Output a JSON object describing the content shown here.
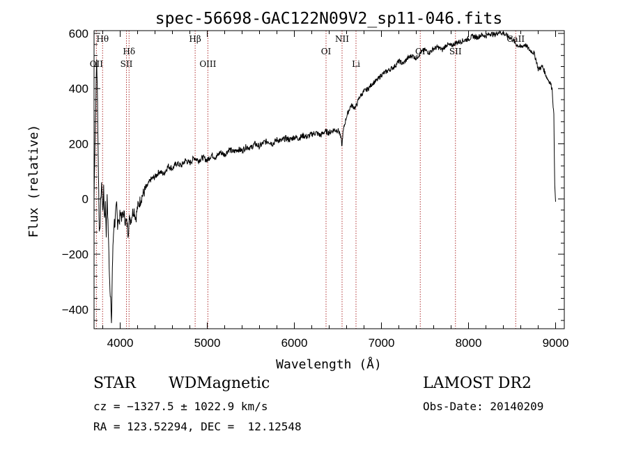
{
  "chart_data": {
    "type": "line",
    "title": "spec-56698-GAC122N09V2_sp11-046.fits",
    "xlabel": "Wavelength (Å)",
    "ylabel": "Flux (relative)",
    "xlim": [
      3700,
      9100
    ],
    "ylim": [
      -470,
      610
    ],
    "x_ticks": [
      4000,
      5000,
      6000,
      7000,
      8000,
      9000
    ],
    "x_tick_labels": [
      "4000",
      "5000",
      "6000",
      "7000",
      "8000",
      "9000"
    ],
    "y_ticks": [
      -400,
      -200,
      0,
      200,
      400,
      600
    ],
    "y_tick_labels": [
      "−400",
      "−200",
      "0",
      "200",
      "400",
      "600"
    ],
    "grid": false,
    "line_color": "#000000",
    "marker_color": "#b03030",
    "spectral_lines": [
      {
        "label": "Hθ",
        "x": 3798,
        "tier": 0
      },
      {
        "label": "OII",
        "x": 3727,
        "tier": 2
      },
      {
        "label": "Hδ",
        "x": 4102,
        "tier": 1
      },
      {
        "label": "SII",
        "x": 4072,
        "tier": 2
      },
      {
        "label": "Hβ",
        "x": 4861,
        "tier": 0
      },
      {
        "label": "OIII",
        "x": 5007,
        "tier": 2
      },
      {
        "label": "OI",
        "x": 6364,
        "tier": 1
      },
      {
        "label": "NII",
        "x": 6548,
        "tier": 0
      },
      {
        "label": "Li",
        "x": 6708,
        "tier": 2
      },
      {
        "label": "OI",
        "x": 7446,
        "tier": 1
      },
      {
        "label": "SII",
        "x": 7850,
        "tier": 1
      },
      {
        "label": "CaII",
        "x": 8542,
        "tier": 0
      }
    ],
    "series": [
      {
        "x": [
          3700,
          3710,
          3720,
          3730,
          3740,
          3750,
          3760,
          3770,
          3780,
          3790,
          3800,
          3810,
          3820,
          3830,
          3840,
          3850,
          3860,
          3870,
          3880,
          3890,
          3900,
          3910,
          3920,
          3930,
          3940,
          3950,
          3960,
          3970,
          3980,
          3990,
          4000,
          4020,
          4040,
          4060,
          4080,
          4090,
          4100,
          4110,
          4120,
          4140,
          4160,
          4180,
          4200,
          4250,
          4300,
          4350,
          4400,
          4450,
          4500,
          4550,
          4600,
          4650,
          4700,
          4750,
          4800,
          4850,
          4900,
          4950,
          5000,
          5050,
          5100,
          5150,
          5200,
          5250,
          5300,
          5350,
          5400,
          5450,
          5500,
          5550,
          5600,
          5650,
          5700,
          5750,
          5800,
          5850,
          5900,
          5950,
          6000,
          6050,
          6100,
          6150,
          6200,
          6250,
          6300,
          6350,
          6400,
          6450,
          6500,
          6520,
          6540,
          6548,
          6555,
          6570,
          6600,
          6650,
          6700,
          6750,
          6800,
          6850,
          6900,
          6950,
          7000,
          7050,
          7100,
          7150,
          7200,
          7250,
          7300,
          7350,
          7400,
          7450,
          7500,
          7550,
          7600,
          7650,
          7700,
          7750,
          7800,
          7850,
          7900,
          7950,
          8000,
          8050,
          8100,
          8150,
          8200,
          8250,
          8300,
          8350,
          8400,
          8450,
          8500,
          8550,
          8600,
          8650,
          8700,
          8750,
          8780,
          8800,
          8850,
          8900,
          8940,
          8960,
          8980,
          8990,
          9000
        ],
        "y": [
          0,
          200,
          350,
          510,
          350,
          100,
          -120,
          -80,
          20,
          50,
          -50,
          30,
          -70,
          -20,
          -120,
          0,
          -80,
          -200,
          -300,
          -350,
          -470,
          -250,
          -150,
          -80,
          -90,
          -50,
          -20,
          -90,
          -60,
          -100,
          -40,
          -70,
          -50,
          -80,
          -90,
          -120,
          -100,
          -60,
          -80,
          -50,
          -40,
          -70,
          -30,
          10,
          40,
          70,
          80,
          100,
          90,
          120,
          110,
          130,
          120,
          140,
          130,
          150,
          140,
          150,
          140,
          160,
          150,
          170,
          160,
          180,
          170,
          180,
          175,
          190,
          185,
          200,
          190,
          205,
          210,
          200,
          215,
          210,
          220,
          215,
          225,
          220,
          230,
          225,
          235,
          240,
          230,
          245,
          240,
          250,
          250,
          240,
          210,
          190,
          230,
          260,
          300,
          340,
          330,
          370,
          390,
          400,
          420,
          430,
          450,
          460,
          470,
          480,
          500,
          490,
          510,
          520,
          510,
          530,
          540,
          530,
          545,
          550,
          540,
          560,
          555,
          565,
          570,
          575,
          580,
          590,
          585,
          595,
          590,
          600,
          595,
          605,
          600,
          590,
          580,
          560,
          550,
          560,
          540,
          530,
          500,
          470,
          480,
          440,
          420,
          400,
          300,
          50,
          -10
        ]
      }
    ]
  },
  "info": {
    "object_class": "STAR",
    "subclass": "WDMagnetic",
    "survey": "LAMOST DR2",
    "cz": "cz = −1327.5 ± 1022.9 km/s",
    "obs_date": "Obs-Date: 20140209",
    "radec": "RA = 123.52294, DEC =  12.12548"
  }
}
